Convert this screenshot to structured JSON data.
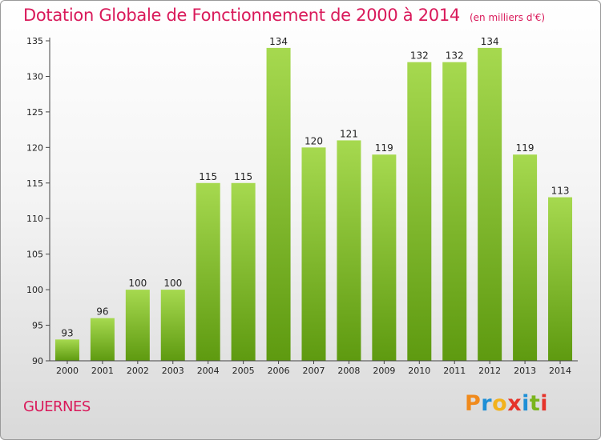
{
  "header": {
    "title": "Dotation Globale de Fonctionnement de 2000 à 2014",
    "subtitle": "(en milliers d'€)"
  },
  "footer": {
    "commune": "GUERNES",
    "logo_letters": [
      "P",
      "r",
      "o",
      "x",
      "i",
      "t",
      "i"
    ],
    "logo_colors": [
      "#f08a1c",
      "#1e8fd6",
      "#f2b21c",
      "#e5332a",
      "#1e8fd6",
      "#7ab51d",
      "#e5332a"
    ]
  },
  "chart_data": {
    "type": "bar",
    "title": "Dotation Globale de Fonctionnement de 2000 à 2014",
    "subtitle": "(en milliers d'€)",
    "categories": [
      "2000",
      "2001",
      "2002",
      "2003",
      "2004",
      "2005",
      "2006",
      "2007",
      "2008",
      "2009",
      "2010",
      "2011",
      "2012",
      "2013",
      "2014"
    ],
    "values": [
      93,
      96,
      100,
      100,
      115,
      115,
      134,
      120,
      121,
      119,
      132,
      132,
      134,
      119,
      113
    ],
    "ylim": [
      90,
      135
    ],
    "yticks": [
      90,
      95,
      100,
      105,
      110,
      115,
      120,
      125,
      130,
      135
    ],
    "grid": false,
    "bar_color_top": "#a6d94f",
    "bar_color_bottom": "#5e9a10",
    "xlabel": "",
    "ylabel": ""
  }
}
